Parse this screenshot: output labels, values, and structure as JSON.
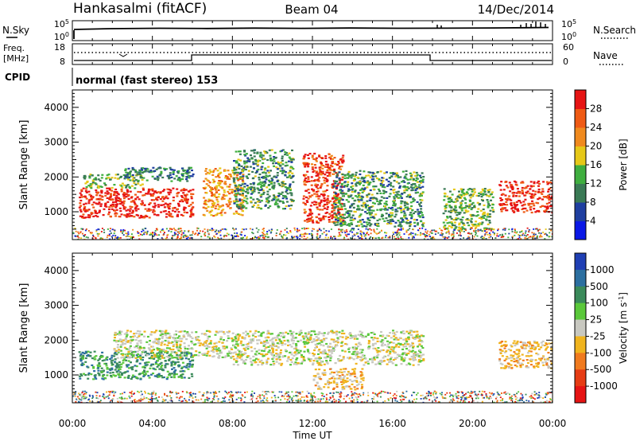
{
  "header": {
    "station": "Hankasalmi (fitACF)",
    "beam": "Beam 04",
    "date": "14/Dec/2014"
  },
  "noise_panel": {
    "left_label": "N.Sky",
    "right_label": "N.Search",
    "ticks_left": [
      "10^5",
      "10^0"
    ],
    "ticks_right": [
      "10^5",
      "10^0"
    ]
  },
  "freq_panel": {
    "left_label_1": "Freq.",
    "left_label_2": "[MHz]",
    "ticks_left": [
      "18",
      "8"
    ],
    "right_label": "Nave",
    "ticks_right": [
      "60",
      "0"
    ]
  },
  "cpid": {
    "label": "CPID",
    "text": "normal (fast stereo) 153"
  },
  "colors": {
    "power": [
      "#0a18e6",
      "#1f3fa0",
      "#3a7a55",
      "#3fae3f",
      "#e6c818",
      "#f08a1e",
      "#ef5a14",
      "#e61414"
    ],
    "velocity": [
      "#1f3fb4",
      "#2c6fa0",
      "#3a8a5a",
      "#5ac83a",
      "#c8c8c0",
      "#f0b41e",
      "#f07a1e",
      "#e63c14",
      "#e61414"
    ]
  },
  "chart_data": [
    {
      "type": "heatmap",
      "title": "",
      "ylabel": "Slant Range [km]",
      "xlabel": "",
      "ylim": [
        200,
        4500
      ],
      "yticks": [
        1000,
        2000,
        3000,
        4000
      ],
      "xlim": [
        "00:00",
        "24:00"
      ],
      "colorbar": {
        "label": "Power [dB]",
        "ticks": [
          4,
          8,
          12,
          16,
          20,
          24,
          28
        ],
        "range": [
          0,
          32
        ]
      },
      "echo_regions": [
        {
          "t": [
            0.3,
            6.0
          ],
          "r": [
            850,
            1700
          ],
          "level": 30
        },
        {
          "t": [
            0.5,
            3.5
          ],
          "r": [
            1700,
            2100
          ],
          "level": 14
        },
        {
          "t": [
            2.5,
            6.0
          ],
          "r": [
            1900,
            2300
          ],
          "level": 10
        },
        {
          "t": [
            6.5,
            8.5
          ],
          "r": [
            900,
            2300
          ],
          "level": 22
        },
        {
          "t": [
            8.0,
            11.0
          ],
          "r": [
            1100,
            2800
          ],
          "level": 12
        },
        {
          "t": [
            11.5,
            13.5
          ],
          "r": [
            700,
            2700
          ],
          "level": 28
        },
        {
          "t": [
            13.0,
            17.5
          ],
          "r": [
            600,
            2200
          ],
          "level": 12
        },
        {
          "t": [
            18.5,
            21.0
          ],
          "r": [
            500,
            1700
          ],
          "level": 14
        },
        {
          "t": [
            21.3,
            24.0
          ],
          "r": [
            1000,
            1900
          ],
          "level": 30
        }
      ]
    },
    {
      "type": "heatmap",
      "title": "",
      "ylabel": "Slant Range [km]",
      "xlabel": "Time UT",
      "ylim": [
        200,
        4500
      ],
      "yticks": [
        1000,
        2000,
        3000,
        4000
      ],
      "xticks": [
        "00:00",
        "04:00",
        "08:00",
        "12:00",
        "16:00",
        "20:00",
        "00:00"
      ],
      "colorbar": {
        "label": "Velocity [m s^-1]",
        "ticks": [
          1000,
          500,
          100,
          25,
          -25,
          -100,
          -500,
          -1000
        ]
      },
      "echo_regions": [
        {
          "t": [
            0.3,
            6.0
          ],
          "r": [
            900,
            1700
          ],
          "level": "green"
        },
        {
          "t": [
            2.0,
            8.0
          ],
          "r": [
            1500,
            2300
          ],
          "level": "gray"
        },
        {
          "t": [
            8.0,
            17.5
          ],
          "r": [
            1300,
            2300
          ],
          "level": "gray"
        },
        {
          "t": [
            12.0,
            14.5
          ],
          "r": [
            600,
            1200
          ],
          "level": "orange"
        },
        {
          "t": [
            21.3,
            24.0
          ],
          "r": [
            1200,
            2000
          ],
          "level": "orange"
        }
      ]
    }
  ]
}
